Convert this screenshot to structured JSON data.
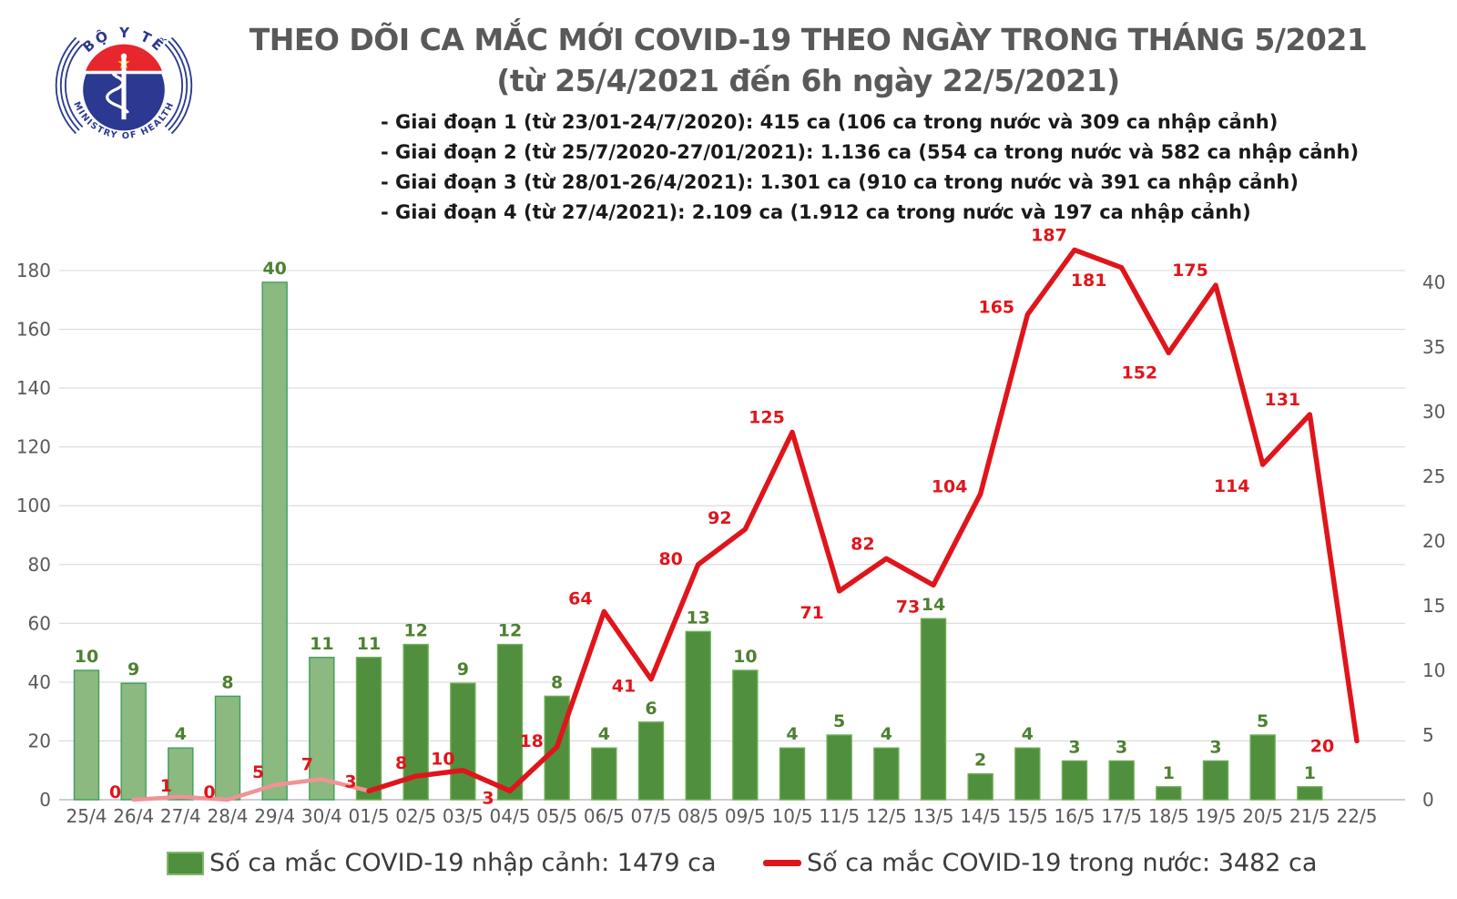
{
  "header": {
    "title_line1": "THEO DÕI CA MẮC MỚI COVID-19 THEO NGÀY TRONG THÁNG 5/2021",
    "title_line2": "(từ 25/4/2021 đến 6h ngày 22/5/2021)",
    "phases": [
      "- Giai đoạn 1 (từ 23/01-24/7/2020): 415 ca (106 ca trong nước và 309 ca nhập cảnh)",
      "- Giai đoạn 2 (từ 25/7/2020-27/01/2021): 1.136 ca (554 ca trong nước và 582 ca nhập cảnh)",
      "- Giai đoạn 3 (từ 28/01-26/4/2021): 1.301 ca (910 ca trong nước và 391 ca nhập cảnh)",
      "- Giai đoạn 4 (từ 27/4/2021): 2.109 ca (1.912 ca trong nước và 197 ca nhập cảnh)"
    ],
    "logo": {
      "top_text": "BỘ Y TẾ",
      "bottom_text": "MINISTRY OF HEALTH",
      "star": "★"
    }
  },
  "chart_data": {
    "type": "bar",
    "combo": "bar+line",
    "categories": [
      "25/4",
      "26/4",
      "27/4",
      "28/4",
      "29/4",
      "30/4",
      "01/5",
      "02/5",
      "03/5",
      "04/5",
      "05/5",
      "06/5",
      "07/5",
      "08/5",
      "09/5",
      "10/5",
      "11/5",
      "12/5",
      "13/5",
      "14/5",
      "15/5",
      "16/5",
      "17/5",
      "18/5",
      "19/5",
      "20/5",
      "21/5",
      "22/5"
    ],
    "series": [
      {
        "name": "Số ca mắc COVID-19 nhập cảnh",
        "type": "bar",
        "axis": "right",
        "values": [
          10,
          9,
          4,
          8,
          40,
          11,
          11,
          12,
          9,
          12,
          8,
          4,
          6,
          13,
          10,
          4,
          5,
          4,
          14,
          2,
          4,
          3,
          3,
          1,
          3,
          5,
          1,
          null
        ]
      },
      {
        "name": "Số ca mắc COVID-19 trong nước",
        "type": "line",
        "axis": "left",
        "values": [
          null,
          0,
          1,
          0,
          5,
          7,
          3,
          8,
          10,
          3,
          18,
          64,
          41,
          80,
          92,
          125,
          71,
          82,
          73,
          104,
          165,
          187,
          181,
          152,
          175,
          114,
          131,
          20
        ]
      }
    ],
    "left_axis": {
      "min": 0,
      "max": 180,
      "step": 20,
      "ticks": [
        0,
        20,
        40,
        60,
        80,
        100,
        120,
        140,
        160,
        180
      ]
    },
    "right_axis": {
      "min": 0,
      "max": 40,
      "step": 5,
      "ticks": [
        0,
        5,
        10,
        15,
        20,
        25,
        30,
        35,
        40
      ]
    },
    "grid": "horizontal",
    "legend_position": "bottom",
    "title": "THEO DÕI CA MẮC MỚI COVID-19 THEO NGÀY TRONG THÁNG 5/2021",
    "subtitle": "(từ 25/4/2021 đến 6h ngày 22/5/2021)"
  },
  "legend": {
    "imported_label": "Số ca mắc COVID-19 nhập cảnh: 1479 ca",
    "domestic_label": "Số ca mắc COVID-19 trong nước: 3482 ca"
  },
  "colors": {
    "bar_fill_may": "#4f8f3e",
    "bar_stroke_may": "#6fae54",
    "bar_fill_april": "#8cb97f",
    "bar_stroke_april": "#3ea05c",
    "bar_label": "#4e8031",
    "line_red": "#e0151b",
    "line_faded": "#f09396",
    "line_label": "#e0151b",
    "axis_text": "#595959",
    "gridline": "#d9d9d9",
    "axis_line": "#bfbfbf",
    "title_text": "#595959",
    "logo_navy": "#2b3990",
    "logo_red": "#e8262d",
    "logo_star": "#ffd400"
  }
}
